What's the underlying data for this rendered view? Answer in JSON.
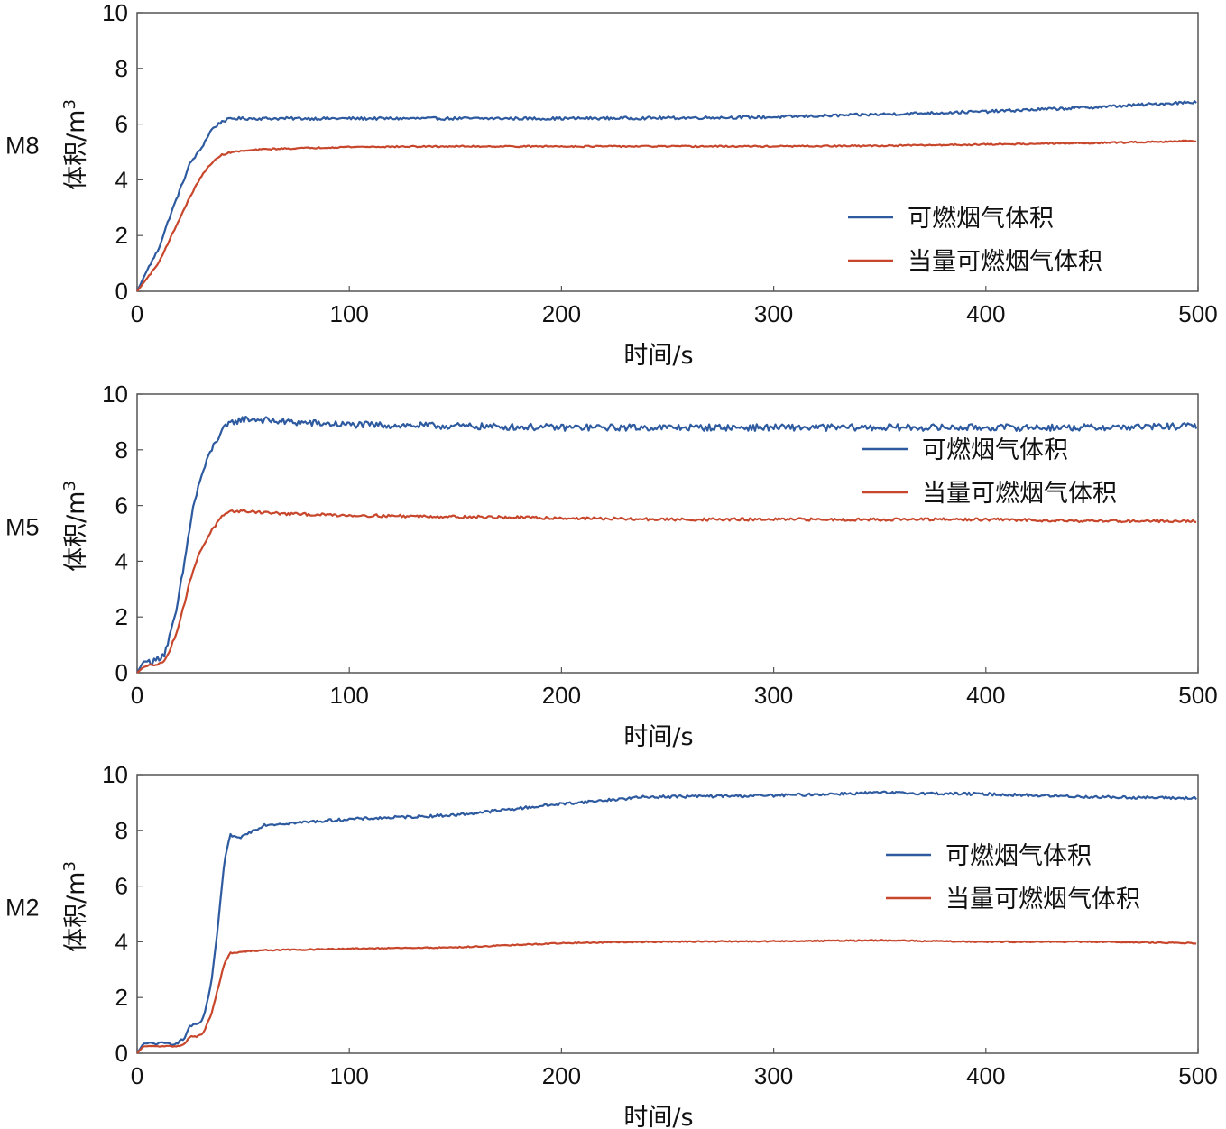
{
  "chart_data": [
    {
      "type": "line",
      "label": "M8",
      "xlabel": "时间/s",
      "ylabel": "体积/m",
      "ylabel_sup": "3",
      "xlim": [
        0,
        500
      ],
      "ylim": [
        0,
        10
      ],
      "xticks": [
        0,
        100,
        200,
        300,
        400,
        500
      ],
      "yticks": [
        0,
        2,
        4,
        6,
        8,
        10
      ],
      "legend_position": "bottom-right",
      "series": [
        {
          "name": "可燃烟气体积",
          "color": "#2e5aa0",
          "x": [
            0,
            5,
            10,
            15,
            20,
            25,
            30,
            35,
            40,
            45,
            60,
            100,
            150,
            200,
            250,
            300,
            350,
            400,
            450,
            500
          ],
          "y": [
            0,
            0.8,
            1.5,
            2.6,
            3.6,
            4.6,
            5.1,
            5.8,
            6.1,
            6.2,
            6.2,
            6.2,
            6.2,
            6.2,
            6.22,
            6.25,
            6.35,
            6.45,
            6.6,
            6.8
          ],
          "noise": 0.05
        },
        {
          "name": "当量可燃烟气体积",
          "color": "#c8472c",
          "x": [
            0,
            5,
            10,
            15,
            20,
            25,
            30,
            35,
            40,
            45,
            60,
            100,
            150,
            200,
            250,
            300,
            350,
            400,
            450,
            500
          ],
          "y": [
            0,
            0.5,
            1.0,
            1.8,
            2.6,
            3.4,
            4.1,
            4.6,
            4.9,
            5.0,
            5.1,
            5.18,
            5.2,
            5.2,
            5.2,
            5.2,
            5.22,
            5.27,
            5.32,
            5.4
          ],
          "noise": 0.025
        }
      ]
    },
    {
      "type": "line",
      "label": "M5",
      "xlabel": "时间/s",
      "ylabel": "体积/m",
      "ylabel_sup": "3",
      "xlim": [
        0,
        500
      ],
      "ylim": [
        0,
        10
      ],
      "xticks": [
        0,
        100,
        200,
        300,
        400,
        500
      ],
      "yticks": [
        0,
        2,
        4,
        6,
        8,
        10
      ],
      "legend_position": "top-right",
      "series": [
        {
          "name": "可燃烟气体积",
          "color": "#2e5aa0",
          "x": [
            0,
            3,
            8,
            13,
            18,
            22,
            26,
            30,
            35,
            40,
            45,
            50,
            55,
            70,
            100,
            150,
            200,
            250,
            300,
            350,
            400,
            450,
            500
          ],
          "y": [
            0,
            0.4,
            0.4,
            0.7,
            2.0,
            3.8,
            5.8,
            7.0,
            8.0,
            8.7,
            9.0,
            9.1,
            9.1,
            9.0,
            8.9,
            8.85,
            8.8,
            8.8,
            8.8,
            8.8,
            8.8,
            8.8,
            8.85
          ],
          "noise": 0.12
        },
        {
          "name": "当量可燃烟气体积",
          "color": "#c8472c",
          "x": [
            0,
            3,
            8,
            13,
            18,
            22,
            26,
            30,
            35,
            40,
            45,
            50,
            55,
            70,
            100,
            150,
            200,
            250,
            300,
            350,
            400,
            450,
            500
          ],
          "y": [
            0,
            0.2,
            0.3,
            0.4,
            1.3,
            2.4,
            3.6,
            4.4,
            5.1,
            5.6,
            5.8,
            5.8,
            5.78,
            5.7,
            5.65,
            5.6,
            5.55,
            5.5,
            5.5,
            5.5,
            5.5,
            5.45,
            5.45
          ],
          "noise": 0.05
        }
      ]
    },
    {
      "type": "line",
      "label": "M2",
      "xlabel": "时间/s",
      "ylabel": "体积/m",
      "ylabel_sup": "3",
      "xlim": [
        0,
        500
      ],
      "ylim": [
        0,
        10
      ],
      "xticks": [
        0,
        100,
        200,
        300,
        400,
        500
      ],
      "yticks": [
        0,
        2,
        4,
        6,
        8,
        10
      ],
      "legend_position": "top-right",
      "series": [
        {
          "name": "可燃烟气体积",
          "color": "#2e5aa0",
          "x": [
            0,
            3,
            10,
            18,
            22,
            25,
            28,
            31,
            35,
            38,
            41,
            44,
            47,
            50,
            60,
            80,
            100,
            150,
            200,
            240,
            300,
            350,
            400,
            450,
            500
          ],
          "y": [
            0,
            0.35,
            0.35,
            0.35,
            0.5,
            1.0,
            1.0,
            1.2,
            2.5,
            4.5,
            6.8,
            7.85,
            7.7,
            7.8,
            8.2,
            8.3,
            8.4,
            8.55,
            8.95,
            9.2,
            9.25,
            9.35,
            9.3,
            9.2,
            9.15
          ],
          "noise": 0.05
        },
        {
          "name": "当量可燃烟气体积",
          "color": "#c8472c",
          "x": [
            0,
            3,
            10,
            18,
            22,
            25,
            28,
            31,
            35,
            38,
            41,
            44,
            47,
            50,
            60,
            80,
            100,
            150,
            200,
            240,
            300,
            350,
            400,
            450,
            500
          ],
          "y": [
            0,
            0.25,
            0.25,
            0.25,
            0.3,
            0.6,
            0.6,
            0.7,
            1.4,
            2.3,
            3.2,
            3.6,
            3.6,
            3.65,
            3.7,
            3.72,
            3.75,
            3.8,
            3.95,
            4.0,
            4.02,
            4.05,
            4.0,
            4.0,
            3.95
          ],
          "noise": 0.02
        }
      ]
    }
  ]
}
